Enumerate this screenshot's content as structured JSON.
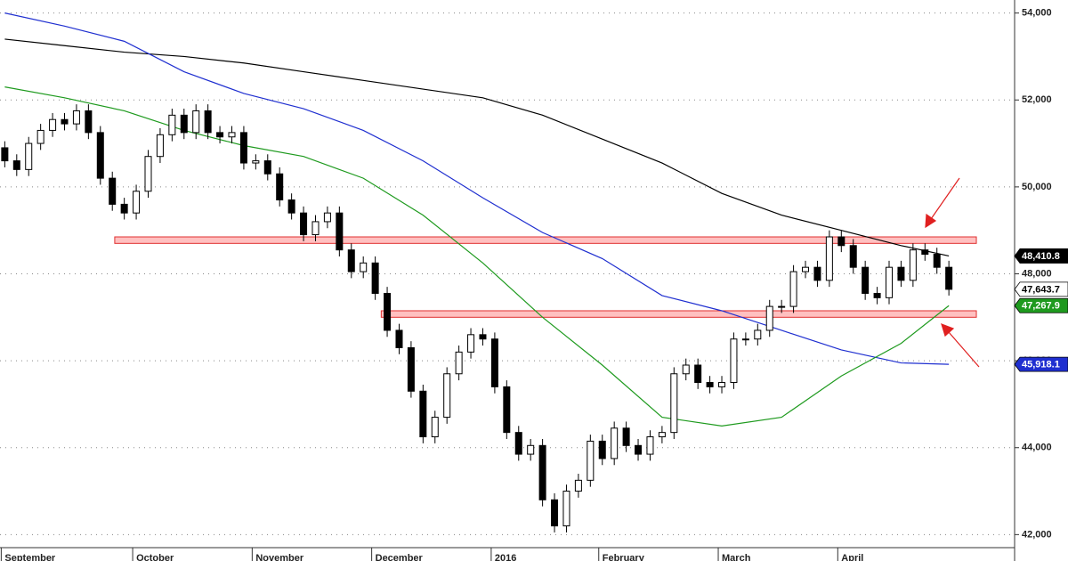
{
  "chart_data": {
    "type": "candlestick",
    "categories": [
      "September",
      null,
      null,
      null,
      null,
      null,
      null,
      null,
      null,
      null,
      null,
      "October",
      null,
      null,
      null,
      null,
      null,
      null,
      null,
      null,
      null,
      "November",
      null,
      null,
      null,
      null,
      null,
      null,
      null,
      null,
      null,
      "December",
      null,
      null,
      null,
      null,
      null,
      null,
      null,
      null,
      null,
      "2016",
      null,
      null,
      null,
      null,
      null,
      null,
      null,
      null,
      "February",
      null,
      null,
      null,
      null,
      null,
      null,
      null,
      null,
      null,
      "March",
      null,
      null,
      null,
      null,
      null,
      null,
      null,
      null,
      null,
      "April",
      null,
      null,
      null,
      null,
      null,
      null,
      null,
      null,
      null
    ],
    "open": [
      50900,
      50600,
      50400,
      51000,
      51300,
      51550,
      51450,
      51750,
      51250,
      50200,
      49600,
      49400,
      49900,
      50700,
      51200,
      51650,
      51250,
      51750,
      51250,
      51150,
      51250,
      50550,
      50600,
      50300,
      49700,
      49400,
      48900,
      49200,
      49400,
      48550,
      48050,
      48250,
      47550,
      46700,
      46300,
      45300,
      44250,
      44700,
      45700,
      46200,
      46600,
      46500,
      45400,
      44350,
      43850,
      44050,
      42800,
      42200,
      43000,
      43250,
      44150,
      43750,
      44450,
      44050,
      43850,
      44250,
      44350,
      45700,
      45900,
      45500,
      45400,
      45500,
      46500,
      46500,
      46700,
      47250,
      47250,
      48050,
      48150,
      47850,
      48850,
      48650,
      48150,
      47550,
      47450,
      48150,
      47850,
      48550,
      48450,
      48150
    ],
    "high": [
      51050,
      50750,
      51150,
      51450,
      51700,
      51700,
      51900,
      51900,
      51400,
      50350,
      49750,
      50050,
      50850,
      51350,
      51800,
      51800,
      51900,
      51900,
      51400,
      51400,
      51400,
      50750,
      50750,
      50450,
      49850,
      49550,
      49350,
      49550,
      49550,
      48700,
      48400,
      48400,
      47700,
      46850,
      46450,
      45450,
      44850,
      45850,
      46350,
      46750,
      46750,
      46650,
      45550,
      44500,
      44200,
      44200,
      42950,
      43150,
      43400,
      44300,
      44300,
      44600,
      44600,
      44200,
      44400,
      44500,
      45850,
      46050,
      46050,
      45650,
      45650,
      46650,
      46650,
      46850,
      47400,
      47400,
      48200,
      48300,
      48300,
      49000,
      49000,
      48800,
      48300,
      47700,
      48300,
      48300,
      48700,
      48700,
      48600,
      48300
    ],
    "low": [
      50450,
      50250,
      50250,
      50850,
      51150,
      51300,
      51300,
      51100,
      50050,
      49450,
      49250,
      49250,
      49750,
      50550,
      51050,
      51100,
      51100,
      51100,
      51000,
      51000,
      50400,
      50400,
      50150,
      49550,
      49250,
      48750,
      48750,
      49050,
      48400,
      47900,
      47900,
      47400,
      46550,
      46150,
      45150,
      44100,
      44100,
      44550,
      45550,
      46050,
      46350,
      45250,
      44200,
      43700,
      43700,
      42650,
      42050,
      42050,
      42850,
      43100,
      43600,
      43600,
      43900,
      43700,
      43700,
      44100,
      44200,
      45550,
      45350,
      45250,
      45250,
      45350,
      46350,
      46350,
      46550,
      47100,
      47100,
      47900,
      47700,
      47700,
      48500,
      48000,
      47400,
      47300,
      47300,
      47700,
      47700,
      48300,
      48000,
      47500
    ],
    "close": [
      50600,
      50400,
      51000,
      51300,
      51550,
      51450,
      51750,
      51250,
      50200,
      49600,
      49400,
      49900,
      50700,
      51200,
      51650,
      51250,
      51750,
      51250,
      51150,
      51250,
      50550,
      50600,
      50300,
      49700,
      49400,
      48900,
      49200,
      49400,
      48550,
      48050,
      48250,
      47550,
      46700,
      46300,
      45300,
      44250,
      44700,
      45700,
      46200,
      46600,
      46500,
      45400,
      44350,
      43850,
      44050,
      42800,
      42200,
      43000,
      43250,
      44150,
      43750,
      44450,
      44050,
      43850,
      44250,
      44350,
      45700,
      45900,
      45500,
      45400,
      45500,
      46500,
      46500,
      46700,
      47250,
      47250,
      48050,
      48150,
      47850,
      48850,
      48650,
      48150,
      47550,
      47450,
      48150,
      47850,
      48550,
      48450,
      48150,
      47643.7
    ],
    "up_color": "#ffffff",
    "down_color": "#000000",
    "xlim": [
      -0.4,
      84.5
    ],
    "ylim": [
      41700,
      54300
    ],
    "yticks": [
      {
        "value": 42000,
        "label": "42,000"
      },
      {
        "value": 44000,
        "label": "44,000"
      },
      {
        "value": 46000,
        "label": "46,000"
      },
      {
        "value": 48000,
        "label": "48,000"
      },
      {
        "value": 50000,
        "label": "50,000"
      },
      {
        "value": 52000,
        "label": "52,000"
      },
      {
        "value": 54000,
        "label": "54,000"
      }
    ],
    "grid": true,
    "moving_averages": [
      {
        "color": "#000000",
        "x": [
          0,
          5,
          10,
          15,
          20,
          25,
          30,
          35,
          40,
          45,
          50,
          55,
          60,
          65,
          70,
          75,
          79
        ],
        "values": [
          53400,
          53250,
          53100,
          53000,
          52850,
          52650,
          52450,
          52250,
          52050,
          51650,
          51100,
          50550,
          49850,
          49350,
          49000,
          48650,
          48410.8
        ]
      },
      {
        "color": "#1f2fd0",
        "x": [
          0,
          5,
          10,
          15,
          20,
          25,
          30,
          35,
          40,
          45,
          50,
          55,
          60,
          65,
          70,
          75,
          79
        ],
        "values": [
          54000,
          53700,
          53350,
          52650,
          52150,
          51800,
          51300,
          50600,
          49750,
          48950,
          48350,
          47500,
          47150,
          46700,
          46250,
          45950,
          45918.1
        ]
      },
      {
        "color": "#1e9a1e",
        "x": [
          0,
          5,
          10,
          15,
          20,
          25,
          30,
          35,
          40,
          45,
          50,
          55,
          60,
          65,
          70,
          75,
          79
        ],
        "values": [
          52300,
          52050,
          51750,
          51300,
          50950,
          50700,
          50200,
          49350,
          48250,
          47000,
          45900,
          44700,
          44500,
          44700,
          45650,
          46400,
          47267.9
        ]
      }
    ],
    "zones": [
      {
        "low": 48700,
        "high": 48850,
        "start": 9.2,
        "end": 81.3
      },
      {
        "low": 47000,
        "high": 47150,
        "start": 31.5,
        "end": 81.3
      }
    ],
    "price_tags": [
      {
        "value": 48410.8,
        "label": "48,410.8",
        "color": "#000000",
        "text_color": "#ffffff"
      },
      {
        "value": 47643.7,
        "label": "47,643.7",
        "color": "#ffffff",
        "text_color": "#000000"
      },
      {
        "value": 47267.9,
        "label": "47,267.9",
        "color": "#1e9a1e",
        "text_color": "#ffffff"
      },
      {
        "value": 45918.1,
        "label": "45,918.1",
        "color": "#1f2fd0",
        "text_color": "#ffffff"
      }
    ]
  }
}
